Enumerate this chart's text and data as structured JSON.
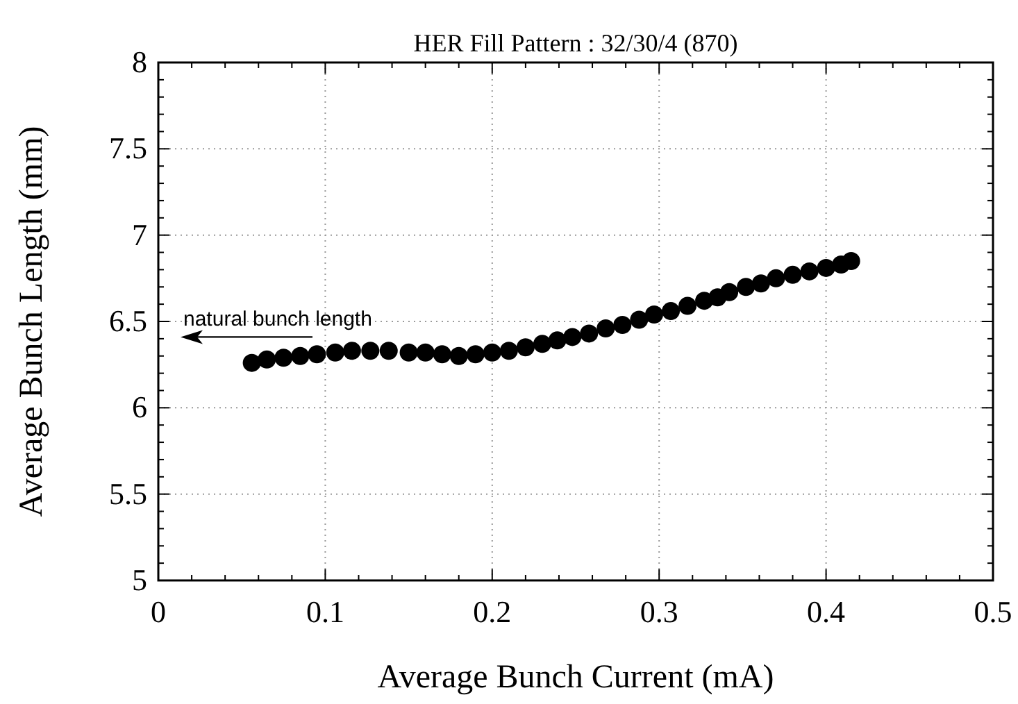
{
  "chart_data": {
    "type": "scatter",
    "title": "HER Fill Pattern : 32/30/4 (870)",
    "xlabel": "Average Bunch Current (mA)",
    "ylabel": "Average Bunch Length (mm)",
    "xlim": [
      0,
      0.5
    ],
    "ylim": [
      5,
      8
    ],
    "xticks": [
      0,
      0.1,
      0.2,
      0.3,
      0.4,
      0.5
    ],
    "yticks": [
      5,
      5.5,
      6,
      6.5,
      7,
      7.5,
      8
    ],
    "grid": true,
    "marker": "circle",
    "annotations": [
      "natural bunch length"
    ],
    "series": [
      {
        "color": "#000000",
        "x": [
          0.056,
          0.065,
          0.075,
          0.085,
          0.095,
          0.106,
          0.116,
          0.127,
          0.138,
          0.15,
          0.16,
          0.17,
          0.18,
          0.19,
          0.2,
          0.21,
          0.22,
          0.23,
          0.239,
          0.248,
          0.258,
          0.268,
          0.278,
          0.288,
          0.297,
          0.307,
          0.317,
          0.327,
          0.335,
          0.342,
          0.352,
          0.361,
          0.37,
          0.38,
          0.39,
          0.4,
          0.409,
          0.415
        ],
        "values": [
          6.26,
          6.28,
          6.29,
          6.3,
          6.31,
          6.32,
          6.33,
          6.33,
          6.33,
          6.32,
          6.32,
          6.31,
          6.3,
          6.31,
          6.32,
          6.33,
          6.35,
          6.37,
          6.39,
          6.41,
          6.43,
          6.46,
          6.48,
          6.51,
          6.54,
          6.56,
          6.59,
          6.62,
          6.64,
          6.67,
          6.7,
          6.72,
          6.75,
          6.77,
          6.79,
          6.81,
          6.83,
          6.85
        ]
      }
    ]
  }
}
